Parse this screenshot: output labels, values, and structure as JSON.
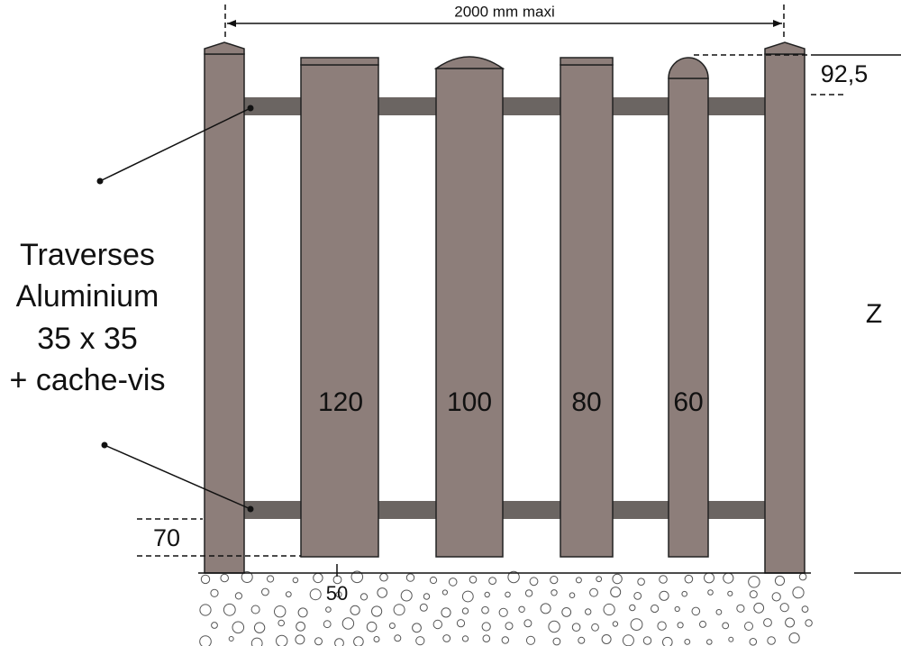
{
  "dimensions": {
    "width": "2000 mm maxi",
    "top_offset": "92,5",
    "height": "Z",
    "rail_offset": "70",
    "ground_gap": "50"
  },
  "label": {
    "lines": [
      "Traverses",
      "Aluminium",
      "35 x 35",
      "+ cache-vis"
    ]
  },
  "slats": [
    {
      "label": "120"
    },
    {
      "label": "100"
    },
    {
      "label": "80"
    },
    {
      "label": "60"
    }
  ]
}
